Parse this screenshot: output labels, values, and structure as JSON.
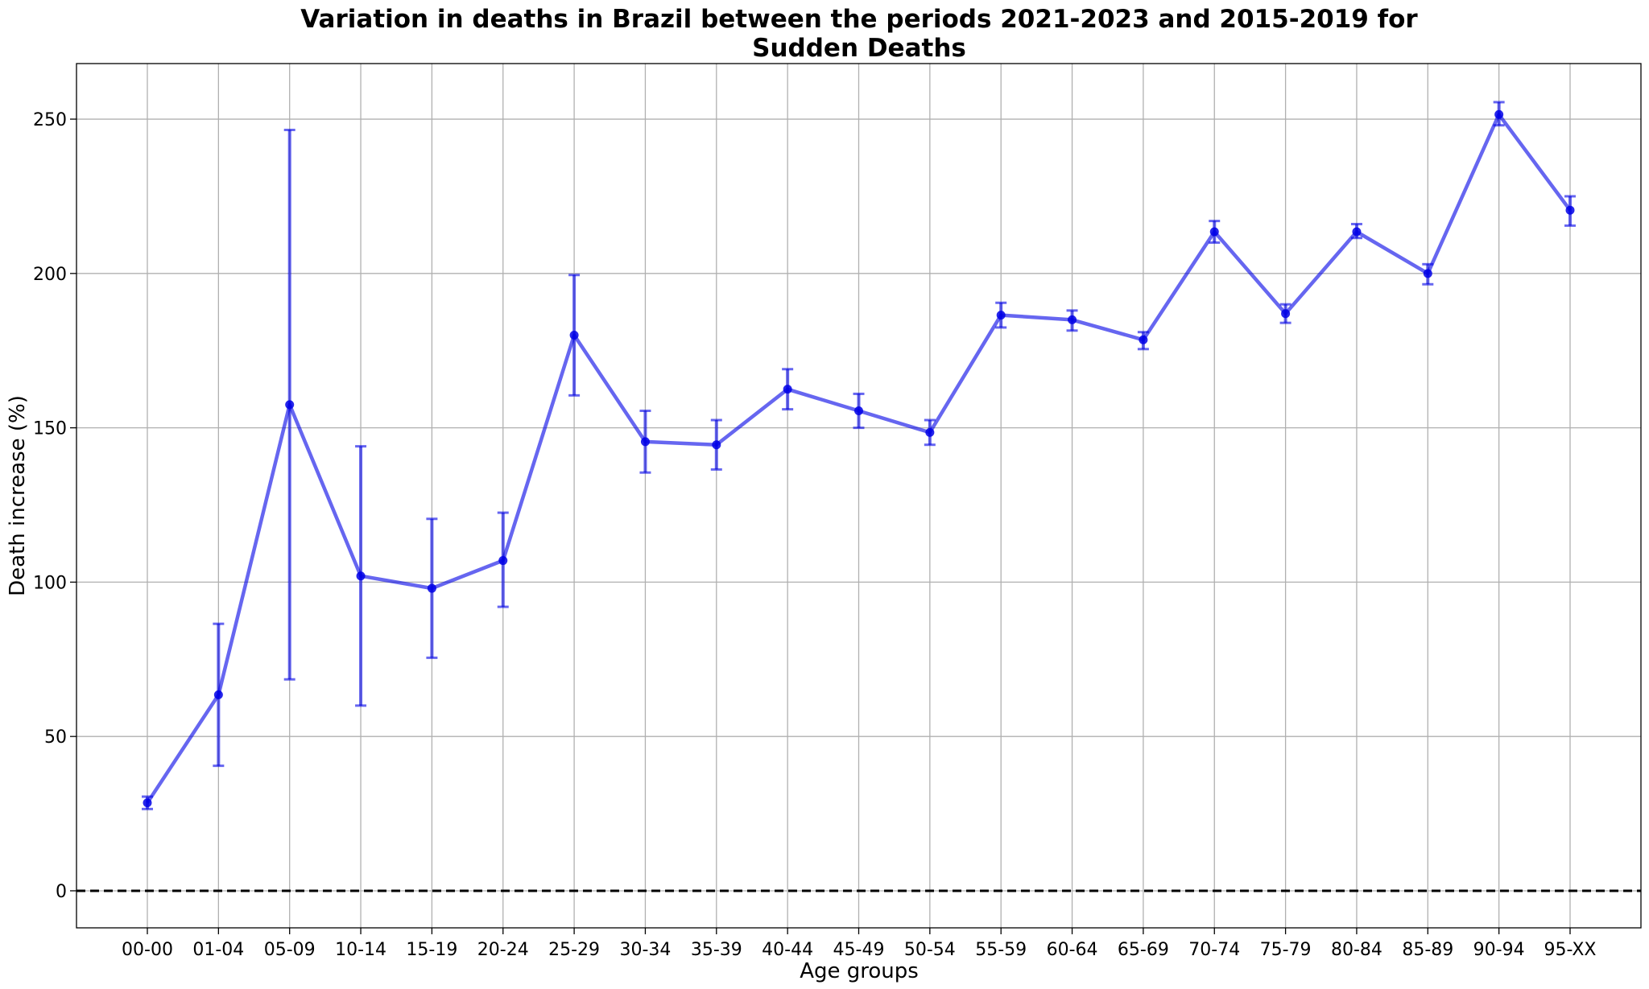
{
  "chart_data": {
    "type": "line",
    "title": "Variation in deaths in Brazil between the periods 2021-2023 and 2015-2019 for Sudden Deaths",
    "title_lines": [
      "Variation in deaths in Brazil between the periods 2021-2023 and 2015-2019 for",
      "Sudden Deaths"
    ],
    "xlabel": "Age groups",
    "ylabel": "Death increase (%)",
    "categories": [
      "00-00",
      "01-04",
      "05-09",
      "10-14",
      "15-19",
      "20-24",
      "25-29",
      "30-34",
      "35-39",
      "40-44",
      "45-49",
      "50-54",
      "55-59",
      "60-64",
      "65-69",
      "70-74",
      "75-79",
      "80-84",
      "85-89",
      "90-94",
      "95-XX"
    ],
    "series": [
      {
        "values": [
          28.5,
          63.5,
          157.5,
          102.0,
          98.0,
          107.0,
          180.0,
          145.5,
          144.5,
          162.5,
          155.5,
          148.5,
          186.5,
          185.0,
          178.5,
          213.5,
          187.0,
          213.5,
          200.0,
          251.5,
          220.5
        ],
        "err_low": [
          26.5,
          40.5,
          68.5,
          60.0,
          75.5,
          92.0,
          160.5,
          135.5,
          136.5,
          156.0,
          150.0,
          144.5,
          182.5,
          181.5,
          175.5,
          210.0,
          184.0,
          211.5,
          196.5,
          248.0,
          215.5
        ],
        "err_high": [
          30.5,
          86.5,
          246.5,
          144.0,
          120.5,
          122.5,
          199.5,
          155.5,
          152.5,
          169.0,
          161.0,
          152.5,
          190.5,
          188.0,
          181.0,
          217.0,
          190.0,
          216.0,
          203.0,
          255.5,
          225.0
        ]
      }
    ],
    "yticks": [
      0,
      50,
      100,
      150,
      200,
      250
    ],
    "ylim": [
      -12,
      268
    ],
    "reference_line": 0,
    "grid": true,
    "colors": {
      "series": "#0000e6",
      "reference_line": "#000000",
      "grid": "#b0b0b0"
    }
  }
}
